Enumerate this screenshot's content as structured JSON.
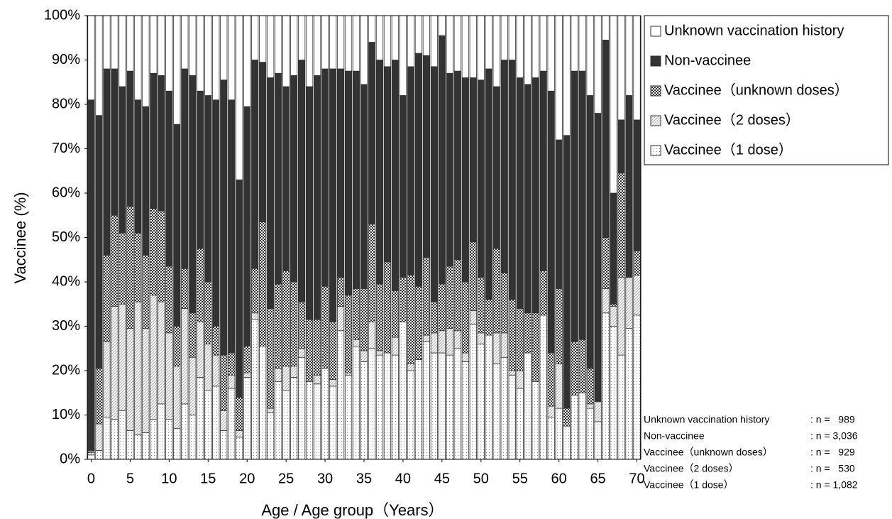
{
  "chart_data": {
    "type": "stacked-bar",
    "x_label": "Age / Age group（Years）",
    "y_label": "Vaccinee (%)",
    "x": [
      0,
      1,
      2,
      3,
      4,
      5,
      6,
      7,
      8,
      9,
      10,
      11,
      12,
      13,
      14,
      15,
      16,
      17,
      18,
      19,
      20,
      21,
      22,
      23,
      24,
      25,
      26,
      27,
      28,
      29,
      30,
      31,
      32,
      33,
      34,
      35,
      36,
      37,
      38,
      39,
      40,
      41,
      42,
      43,
      44,
      45,
      46,
      47,
      48,
      49,
      50,
      51,
      52,
      53,
      54,
      55,
      56,
      57,
      58,
      59,
      60,
      61,
      62,
      63,
      64,
      65,
      66,
      67,
      68,
      69,
      70
    ],
    "xlim": [
      -0.5,
      70.5
    ],
    "xticks": [
      0,
      5,
      10,
      15,
      20,
      25,
      30,
      35,
      40,
      45,
      50,
      55,
      60,
      65,
      70
    ],
    "ylim": [
      0,
      100
    ],
    "yticks": [
      {
        "value": 0,
        "label": "0%"
      },
      {
        "value": 10,
        "label": "10%"
      },
      {
        "value": 20,
        "label": "20%"
      },
      {
        "value": 30,
        "label": "30%"
      },
      {
        "value": 40,
        "label": "40%"
      },
      {
        "value": 50,
        "label": "50%"
      },
      {
        "value": 60,
        "label": "60%"
      },
      {
        "value": 70,
        "label": "70%"
      },
      {
        "value": 80,
        "label": "80%"
      },
      {
        "value": 90,
        "label": "90%"
      },
      {
        "value": 100,
        "label": "100%"
      }
    ],
    "grid": false,
    "legend": "right",
    "series": [
      {
        "name": "Vaccinee（1 dose）",
        "color": "#999999",
        "pattern": "dots",
        "values": [
          1,
          2,
          9.5,
          9,
          11,
          6.5,
          5.5,
          6,
          9,
          12.5,
          9,
          7,
          12.5,
          10,
          18.5,
          15.5,
          16.5,
          6.5,
          16,
          5,
          18.5,
          31.5,
          25.5,
          10.5,
          17.5,
          15.5,
          18.5,
          23,
          17.5,
          17,
          20.5,
          16.5,
          29,
          19,
          25.5,
          22,
          25,
          23.5,
          24,
          23.5,
          31,
          20,
          22.5,
          26.5,
          24,
          24,
          23.5,
          25,
          22,
          30.5,
          26,
          28,
          21.5,
          23,
          19,
          16,
          24,
          17.5,
          32.5,
          9.5,
          11.5,
          7.5,
          14.5,
          15,
          11.5,
          8.5,
          33,
          30,
          23.5,
          29.5,
          32.5
        ]
      },
      {
        "name": "Vaccinee（2 doses）",
        "color": "#aaaaaa",
        "pattern": "hatch",
        "values": [
          0.5,
          6,
          17,
          25.5,
          24,
          23,
          30,
          23.5,
          28,
          23,
          19.5,
          14,
          21.5,
          13,
          12.5,
          10.5,
          7,
          4.5,
          3,
          1.5,
          1,
          1.5,
          0,
          1,
          3,
          5.5,
          2.5,
          2,
          0,
          2,
          0,
          1.5,
          5.5,
          0.5,
          1.5,
          2.5,
          6,
          1,
          0,
          4,
          0,
          1.5,
          0,
          1.5,
          4.5,
          5,
          6,
          4,
          2,
          3,
          2.5,
          0,
          7,
          5.5,
          1,
          4,
          0,
          0,
          0,
          2.5,
          10,
          0,
          0,
          0,
          1,
          4.5,
          5.5,
          4.5,
          17.5,
          11.5,
          9
        ]
      },
      {
        "name": "Vaccinee（unknown doses）",
        "color": "#333333",
        "pattern": "check",
        "values": [
          0.5,
          12.5,
          19.5,
          20.5,
          16,
          27.5,
          15.5,
          16.5,
          19.5,
          20.5,
          15,
          9,
          9,
          10,
          16.5,
          14,
          6.5,
          12.5,
          5,
          7.5,
          6,
          10,
          28,
          22.5,
          19,
          21.5,
          19,
          10.5,
          14,
          12.5,
          18.5,
          13,
          6.5,
          17.5,
          11.5,
          14,
          22,
          15,
          20.5,
          10.5,
          10,
          20,
          16.5,
          17.5,
          7,
          10.5,
          14,
          16,
          16,
          15.5,
          12.5,
          8,
          19,
          13.5,
          16,
          14,
          9,
          15.5,
          10,
          12,
          17,
          4,
          12,
          12,
          8,
          0,
          11.5,
          0.5,
          23.5,
          0,
          5.5
        ]
      },
      {
        "name": "Non-vaccinee",
        "color": "#333333",
        "pattern": "solid",
        "values": [
          79,
          57,
          42,
          33,
          33,
          30.5,
          30,
          33.5,
          30.5,
          30.5,
          39.5,
          45.5,
          45,
          53.5,
          35.5,
          42,
          51,
          62,
          57,
          49,
          54,
          47,
          36,
          52,
          47.5,
          41.5,
          46.5,
          54.5,
          52.5,
          55,
          49,
          57,
          47,
          50.5,
          49,
          46,
          41,
          50.5,
          44,
          52,
          41,
          47,
          52.5,
          45.5,
          53,
          56,
          43.5,
          42.5,
          46,
          37,
          44.5,
          52,
          36.5,
          48,
          54,
          52,
          51.5,
          53,
          45,
          59,
          33.5,
          61.5,
          61,
          60.5,
          61.5,
          65,
          44.5,
          25,
          12,
          41,
          29.5
        ]
      },
      {
        "name": "Unknown vaccination history",
        "color": "#ffffff",
        "pattern": "none",
        "values": [
          19,
          22.5,
          12,
          12,
          16,
          12.5,
          19,
          20.5,
          13,
          13.5,
          17,
          24.5,
          12,
          13.5,
          17,
          18,
          19,
          14.5,
          19,
          37,
          20.5,
          10,
          10.5,
          14,
          13,
          16,
          13.5,
          10,
          16,
          13.5,
          12,
          12,
          12,
          12.5,
          12.5,
          15.5,
          6,
          10,
          11.5,
          10,
          18,
          11.5,
          8.5,
          9,
          11.5,
          4.5,
          13,
          12.5,
          14,
          14,
          14.5,
          12,
          16,
          10,
          10,
          14,
          15.5,
          14,
          12.5,
          17,
          28,
          27,
          12.5,
          12.5,
          18,
          22,
          5.5,
          40,
          23.5,
          18,
          23.5
        ]
      }
    ],
    "counts": [
      {
        "label": "Unknown vaccination history",
        "n": ": n =   989"
      },
      {
        "label": "Non-vaccinee",
        "n": ": n = 3,036"
      },
      {
        "label": "Vaccinee（unknown doses）",
        "n": ": n =   929"
      },
      {
        "label": "Vaccinee（2 doses）",
        "n": ": n =   530"
      },
      {
        "label": "Vaccinee（1 dose）",
        "n": ": n = 1,082"
      }
    ]
  }
}
